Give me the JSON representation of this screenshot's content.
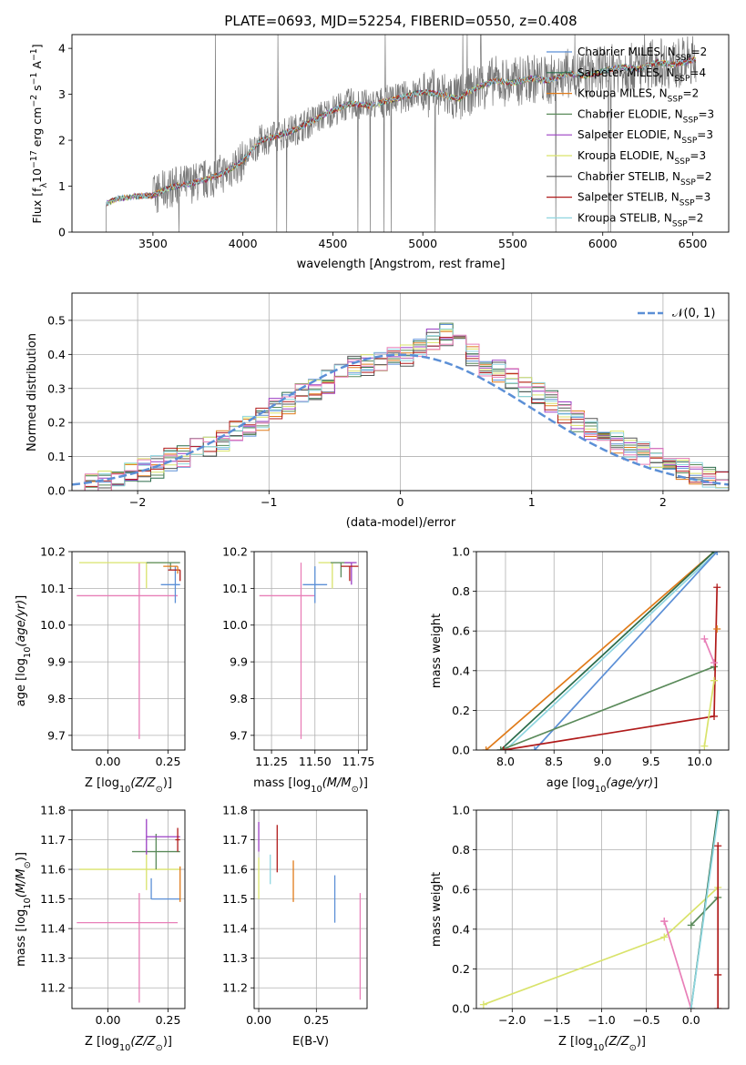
{
  "figure_title": "PLATE=0693, MJD=52254, FIBERID=0550, z=0.408",
  "chart_data": [
    {
      "id": "spectrum",
      "type": "line",
      "title": "PLATE=0693, MJD=52254, FIBERID=0550, z=0.408",
      "xlabel": "wavelength [Angstrom, rest frame]",
      "ylabel": "Flux [f_λ 10^-17 erg cm^-2 s^-1 A^-1]",
      "xlim": [
        3050,
        6700
      ],
      "ylim": [
        0,
        4.3
      ],
      "xticks": [
        "3500",
        "4000",
        "4500",
        "5000",
        "5500",
        "6000",
        "6500"
      ],
      "yticks": [
        "0",
        "1",
        "2",
        "3",
        "4"
      ],
      "grid": false,
      "legend_position": "top-right",
      "data_envelope": {
        "x": [
          3240,
          3300,
          3400,
          3500,
          3600,
          3700,
          3800,
          3900,
          4000,
          4100,
          4200,
          4300,
          4400,
          4500,
          4600,
          4700,
          4800,
          4900,
          5000,
          5100,
          5200,
          5300,
          5400,
          5500,
          5600,
          5700,
          5800,
          5900,
          6000,
          6100,
          6200,
          6300,
          6400,
          6500
        ],
        "y": [
          0.62,
          0.72,
          0.78,
          0.8,
          0.98,
          1.05,
          1.15,
          1.3,
          1.55,
          2.0,
          2.1,
          2.25,
          2.45,
          2.65,
          2.8,
          2.75,
          2.85,
          2.95,
          3.05,
          3.0,
          2.9,
          3.15,
          3.3,
          3.25,
          3.35,
          3.3,
          3.45,
          3.4,
          3.5,
          3.6,
          3.55,
          3.7,
          3.65,
          3.75
        ]
      },
      "legend": [
        {
          "label": "Chabrier MILES, N_SSP=2",
          "color": "#5b8fd6"
        },
        {
          "label": "Salpeter MILES, N_SSP=4",
          "color": "#2a6b4a"
        },
        {
          "label": "Kroupa MILES, N_SSP=2",
          "color": "#e07b1a"
        },
        {
          "label": "Chabrier ELODIE, N_SSP=3",
          "color": "#5a8a5a"
        },
        {
          "label": "Salpeter ELODIE, N_SSP=3",
          "color": "#9b3fc4"
        },
        {
          "label": "Kroupa ELODIE, N_SSP=3",
          "color": "#d9e36b"
        },
        {
          "label": "Chabrier STELIB, N_SSP=2",
          "color": "#555555"
        },
        {
          "label": "Salpeter STELIB, N_SSP=3",
          "color": "#b01a1a"
        },
        {
          "label": "Kroupa STELIB, N_SSP=2",
          "color": "#8fd6e0"
        }
      ]
    },
    {
      "id": "residuals",
      "type": "bar",
      "xlabel": "(data-model)/error",
      "ylabel": "Normed distribution",
      "xlim": [
        -2.5,
        2.5
      ],
      "ylim": [
        0,
        0.58
      ],
      "xticks": [
        "−2",
        "−1",
        "0",
        "1",
        "2"
      ],
      "yticks": [
        "0.0",
        "0.1",
        "0.2",
        "0.3",
        "0.4",
        "0.5"
      ],
      "grid": true,
      "legend_position": "top-right",
      "legend_label": "𝒩(0, 1)",
      "normal_color": "#5b8fd6",
      "bin_width": 0.1,
      "bins_x": [
        -2.5,
        -2.4,
        -2.3,
        -2.2,
        -2.1,
        -2.0,
        -1.9,
        -1.8,
        -1.7,
        -1.6,
        -1.5,
        -1.4,
        -1.3,
        -1.2,
        -1.1,
        -1.0,
        -0.9,
        -0.8,
        -0.7,
        -0.6,
        -0.5,
        -0.4,
        -0.3,
        -0.2,
        -0.1,
        0.0,
        0.1,
        0.2,
        0.3,
        0.4,
        0.5,
        0.6,
        0.7,
        0.8,
        0.9,
        1.0,
        1.1,
        1.2,
        1.3,
        1.4,
        1.5,
        1.6,
        1.7,
        1.8,
        1.9,
        2.0,
        2.1,
        2.2,
        2.3,
        2.4
      ],
      "hist_values": [
        0.02,
        0.02,
        0.03,
        0.04,
        0.05,
        0.06,
        0.07,
        0.09,
        0.1,
        0.12,
        0.13,
        0.15,
        0.17,
        0.19,
        0.21,
        0.24,
        0.26,
        0.28,
        0.3,
        0.32,
        0.34,
        0.36,
        0.37,
        0.38,
        0.39,
        0.4,
        0.42,
        0.44,
        0.46,
        0.43,
        0.4,
        0.37,
        0.35,
        0.33,
        0.31,
        0.29,
        0.26,
        0.23,
        0.2,
        0.18,
        0.16,
        0.14,
        0.12,
        0.11,
        0.09,
        0.08,
        0.06,
        0.05,
        0.04,
        0.03
      ],
      "series_colors": [
        "#5b8fd6",
        "#2a6b4a",
        "#e07b1a",
        "#5a8a5a",
        "#9b3fc4",
        "#d9e36b",
        "#555555",
        "#b01a1a",
        "#8fd6e0",
        "#e87fb8"
      ]
    },
    {
      "id": "age_vs_Z",
      "type": "scatter",
      "xlabel": "Z [log10(Z/Z⊙)]",
      "ylabel": "age [log10(age/yr)]",
      "xlim": [
        -0.15,
        0.32
      ],
      "ylim": [
        9.66,
        10.2
      ],
      "xticks": [
        "0.00",
        "0.25"
      ],
      "yticks": [
        "9.7",
        "9.8",
        "9.9",
        "10.0",
        "10.1",
        "10.2"
      ],
      "grid": true,
      "points": [
        {
          "x": 0.13,
          "y": 10.08,
          "xerr": [
            0.26,
            0.16
          ],
          "yerr": [
            0.39,
            0.09
          ],
          "color": "#e87fb8"
        },
        {
          "x": 0.28,
          "y": 10.11,
          "xerr": [
            0.06,
            0.02
          ],
          "yerr": [
            0.05,
            0.05
          ],
          "color": "#5b8fd6"
        },
        {
          "x": 0.16,
          "y": 10.17,
          "xerr": [
            0.28,
            0.1
          ],
          "yerr": [
            0.07,
            0.0
          ],
          "color": "#d9e36b"
        },
        {
          "x": 0.26,
          "y": 10.17,
          "xerr": [
            0.1,
            0.04
          ],
          "yerr": [
            0.02,
            0.0
          ],
          "color": "#5a8a5a"
        },
        {
          "x": 0.3,
          "y": 10.15,
          "xerr": [
            0.05,
            0.0
          ],
          "yerr": [
            0.03,
            0.0
          ],
          "color": "#b01a1a"
        },
        {
          "x": 0.29,
          "y": 10.16,
          "xerr": [
            0.06,
            0.0
          ],
          "yerr": [
            0.02,
            0.0
          ],
          "color": "#e07b1a"
        }
      ]
    },
    {
      "id": "age_vs_mass",
      "type": "scatter",
      "xlabel": "mass [log10(M/M⊙)]",
      "ylabel": "",
      "xlim": [
        11.15,
        11.8
      ],
      "ylim": [
        9.66,
        10.2
      ],
      "xticks": [
        "11.25",
        "11.50",
        "11.75"
      ],
      "yticks": [
        "9.7",
        "9.8",
        "9.9",
        "10.0",
        "10.1",
        "10.2"
      ],
      "grid": true,
      "points": [
        {
          "x": 11.42,
          "y": 10.08,
          "xerr": [
            0.24,
            0.08
          ],
          "yerr": [
            0.39,
            0.09
          ],
          "color": "#e87fb8"
        },
        {
          "x": 11.5,
          "y": 10.11,
          "xerr": [
            0.07,
            0.07
          ],
          "yerr": [
            0.05,
            0.05
          ],
          "color": "#5b8fd6"
        },
        {
          "x": 11.6,
          "y": 10.17,
          "xerr": [
            0.08,
            0.07
          ],
          "yerr": [
            0.07,
            0.0
          ],
          "color": "#d9e36b"
        },
        {
          "x": 11.65,
          "y": 10.17,
          "xerr": [
            0.06,
            0.06
          ],
          "yerr": [
            0.04,
            0.0
          ],
          "color": "#5a8a5a"
        },
        {
          "x": 11.71,
          "y": 10.17,
          "xerr": [
            0.04,
            0.03
          ],
          "yerr": [
            0.06,
            0.0
          ],
          "color": "#9b3fc4"
        },
        {
          "x": 11.7,
          "y": 10.16,
          "xerr": [
            0.05,
            0.05
          ],
          "yerr": [
            0.04,
            0.0
          ],
          "color": "#b01a1a"
        }
      ]
    },
    {
      "id": "massweight_vs_age",
      "type": "line",
      "xlabel": "age [log10(age/yr)]",
      "ylabel": "mass weight",
      "xlim": [
        7.7,
        10.3
      ],
      "ylim": [
        0,
        1
      ],
      "xticks": [
        "8.0",
        "8.5",
        "9.0",
        "9.5",
        "10.0"
      ],
      "yticks": [
        "0.0",
        "0.2",
        "0.4",
        "0.6",
        "0.8",
        "1.0"
      ],
      "grid": true,
      "series": [
        {
          "color": "#e07b1a",
          "x": [
            7.8,
            10.15
          ],
          "y": [
            0.0,
            1.0
          ]
        },
        {
          "color": "#2a6b4a",
          "x": [
            7.95,
            10.15
          ],
          "y": [
            0.0,
            1.0
          ]
        },
        {
          "color": "#8fd6e0",
          "x": [
            8.0,
            10.18
          ],
          "y": [
            0.0,
            1.0
          ]
        },
        {
          "color": "#5b8fd6",
          "x": [
            8.3,
            10.18
          ],
          "y": [
            0.0,
            1.0
          ]
        },
        {
          "color": "#5a8a5a",
          "x": [
            7.95,
            10.15
          ],
          "y": [
            0.0,
            0.42
          ]
        },
        {
          "color": "#b01a1a",
          "x": [
            7.98,
            10.15,
            10.18
          ],
          "y": [
            0.0,
            0.17,
            0.82
          ]
        },
        {
          "color": "#e87fb8",
          "x": [
            10.05,
            10.15
          ],
          "y": [
            0.56,
            0.44
          ]
        },
        {
          "color": "#d9e36b",
          "x": [
            10.05,
            10.15
          ],
          "y": [
            0.02,
            0.35
          ]
        },
        {
          "color": "#e07b1a",
          "x": [
            10.18
          ],
          "y": [
            0.61
          ]
        }
      ]
    },
    {
      "id": "mass_vs_Z",
      "type": "scatter",
      "xlabel": "Z [log10(Z/Z⊙)]",
      "ylabel": "mass [log10(M/M⊙)]",
      "xlim": [
        -0.15,
        0.32
      ],
      "ylim": [
        11.13,
        11.8
      ],
      "xticks": [
        "0.00",
        "0.25"
      ],
      "yticks": [
        "11.2",
        "11.3",
        "11.4",
        "11.5",
        "11.6",
        "11.7",
        "11.8"
      ],
      "grid": true,
      "points": [
        {
          "x": 0.13,
          "y": 11.42,
          "xerr": [
            0.26,
            0.16
          ],
          "yerr": [
            0.27,
            0.1
          ],
          "color": "#e87fb8"
        },
        {
          "x": 0.18,
          "y": 11.5,
          "xerr": [
            0.0,
            0.12
          ],
          "yerr": [
            0.0,
            0.07
          ],
          "color": "#5b8fd6"
        },
        {
          "x": 0.16,
          "y": 11.6,
          "xerr": [
            0.28,
            0.14
          ],
          "yerr": [
            0.07,
            0.07
          ],
          "color": "#d9e36b"
        },
        {
          "x": 0.2,
          "y": 11.66,
          "xerr": [
            0.1,
            0.1
          ],
          "yerr": [
            0.06,
            0.06
          ],
          "color": "#5a8a5a"
        },
        {
          "x": 0.16,
          "y": 11.71,
          "xerr": [
            0.0,
            0.14
          ],
          "yerr": [
            0.06,
            0.06
          ],
          "color": "#9b3fc4"
        },
        {
          "x": 0.29,
          "y": 11.7,
          "xerr": [
            0.01,
            0.01
          ],
          "yerr": [
            0.04,
            0.04
          ],
          "color": "#b01a1a"
        },
        {
          "x": 0.3,
          "y": 11.55,
          "xerr": [
            0.0,
            0.0
          ],
          "yerr": [
            0.06,
            0.06
          ],
          "color": "#e07b1a"
        }
      ]
    },
    {
      "id": "mass_vs_EBV",
      "type": "scatter",
      "xlabel": "E(B-V)",
      "ylabel": "",
      "xlim": [
        -0.02,
        0.47
      ],
      "ylim": [
        11.13,
        11.8
      ],
      "xticks": [
        "0.00",
        "0.25"
      ],
      "yticks": [
        "11.2",
        "11.3",
        "11.4",
        "11.5",
        "11.6",
        "11.7",
        "11.8"
      ],
      "grid": true,
      "points": [
        {
          "x": 0.0,
          "y": 11.71,
          "yerr": [
            0.05,
            0.05
          ],
          "color": "#9b3fc4"
        },
        {
          "x": 0.0,
          "y": 11.6,
          "yerr": [
            0.1,
            0.04
          ],
          "color": "#d9e36b"
        },
        {
          "x": 0.05,
          "y": 11.6,
          "yerr": [
            0.05,
            0.05
          ],
          "color": "#8fd6e0"
        },
        {
          "x": 0.08,
          "y": 11.67,
          "yerr": [
            0.08,
            0.08
          ],
          "color": "#b01a1a"
        },
        {
          "x": 0.15,
          "y": 11.56,
          "yerr": [
            0.07,
            0.07
          ],
          "color": "#e07b1a"
        },
        {
          "x": 0.33,
          "y": 11.5,
          "yerr": [
            0.08,
            0.08
          ],
          "color": "#5b8fd6"
        },
        {
          "x": 0.44,
          "y": 11.34,
          "yerr": [
            0.18,
            0.18
          ],
          "color": "#e87fb8"
        }
      ]
    },
    {
      "id": "massweight_vs_Z",
      "type": "line",
      "xlabel": "Z [log10(Z/Z⊙)]",
      "ylabel": "mass weight",
      "xlim": [
        -2.4,
        0.42
      ],
      "ylim": [
        0,
        1
      ],
      "xticks": [
        "−2.0",
        "−1.5",
        "−1.0",
        "−0.5",
        "0.0"
      ],
      "yticks": [
        "0.0",
        "0.2",
        "0.4",
        "0.6",
        "0.8",
        "1.0"
      ],
      "grid": true,
      "series": [
        {
          "color": "#d9e36b",
          "x": [
            -2.32,
            -0.3,
            0.3
          ],
          "y": [
            0.02,
            0.36,
            0.61
          ]
        },
        {
          "color": "#e87fb8",
          "x": [
            -0.3,
            0.0,
            -0.3
          ],
          "y": [
            0.44,
            0.0,
            0.44
          ]
        },
        {
          "color": "#5a8a5a",
          "x": [
            0.0,
            0.3
          ],
          "y": [
            0.42,
            0.56
          ]
        },
        {
          "color": "#2a6b4a",
          "x": [
            0.0,
            0.3
          ],
          "y": [
            0.0,
            1.0
          ]
        },
        {
          "color": "#8fd6e0",
          "x": [
            0.0,
            0.31
          ],
          "y": [
            0.0,
            1.0
          ]
        },
        {
          "color": "#b01a1a",
          "x": [
            0.3,
            0.3,
            0.3
          ],
          "y": [
            0.0,
            0.17,
            0.82
          ]
        }
      ]
    }
  ]
}
